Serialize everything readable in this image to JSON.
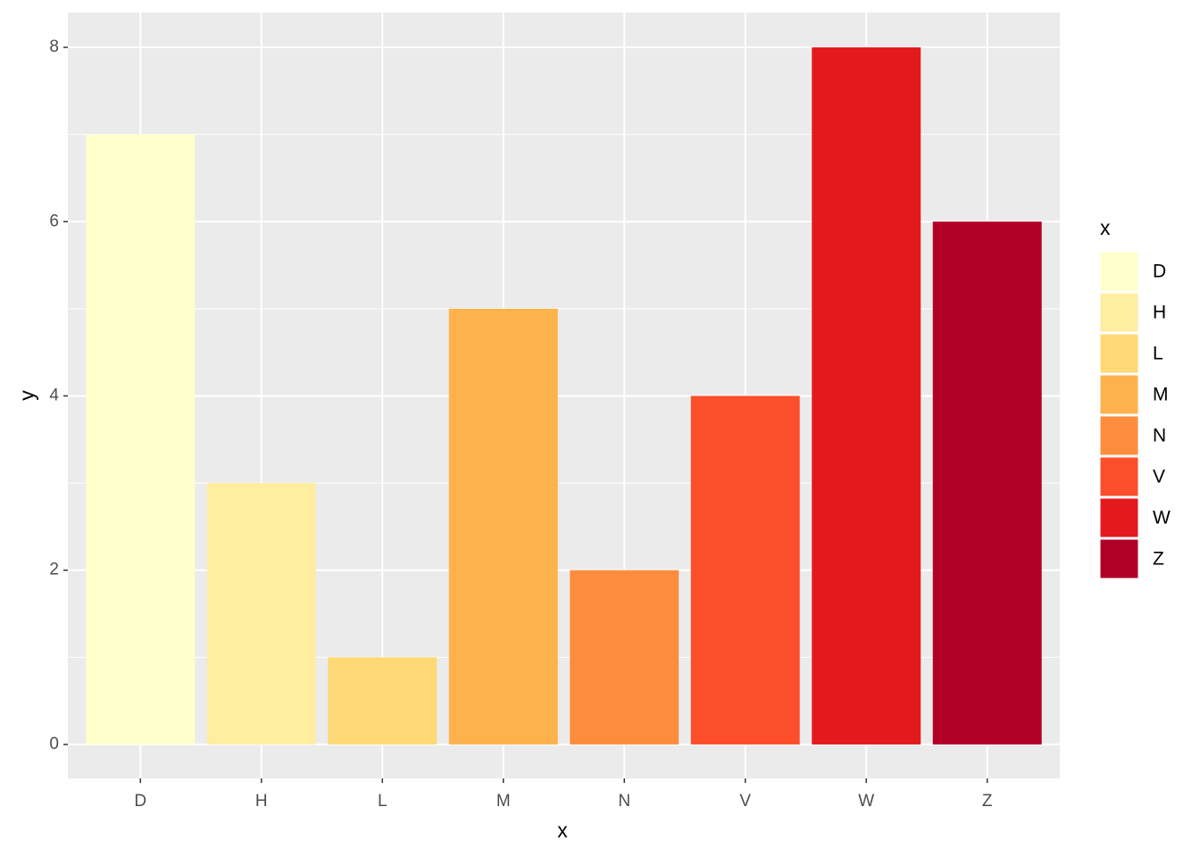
{
  "chart_data": {
    "type": "bar",
    "x_label": "x",
    "y_label": "y",
    "legend_title": "x",
    "categories": [
      "D",
      "H",
      "L",
      "M",
      "N",
      "V",
      "W",
      "Z"
    ],
    "values": [
      7,
      3,
      1,
      5,
      2,
      4,
      8,
      6
    ],
    "colors": [
      "#FFFFCC",
      "#FFEDA0",
      "#FED976",
      "#FEB24C",
      "#FD8D3C",
      "#FC4E2A",
      "#E31A1C",
      "#B10026"
    ],
    "ylim": [
      -0.39,
      8.4
    ],
    "yticks": [
      0,
      2,
      4,
      6,
      8
    ],
    "grid": true,
    "legend_position": "right"
  }
}
